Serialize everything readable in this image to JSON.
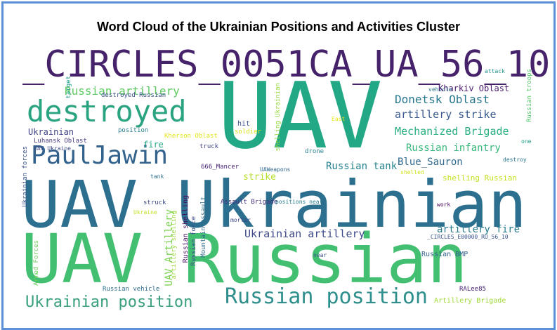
{
  "title": "Word Cloud of the Ukrainian Positions and Activities Cluster",
  "colors": {
    "border": "#5b8fd6"
  },
  "words": [
    {
      "text": "_CIRCLES_0051CA_UA_56_10",
      "color": "#45226a"
    },
    {
      "text": "UAV",
      "color": "#22a884"
    },
    {
      "text": "UAV Ukrainian",
      "color": "#2c6f8e"
    },
    {
      "text": "UAV Russian",
      "color": "#43bf71"
    },
    {
      "text": "destroyed",
      "color": "#2aa380"
    },
    {
      "text": "PaulJawin",
      "color": "#33638d"
    },
    {
      "text": "Russian position",
      "color": "#2f8f8c"
    },
    {
      "text": "Ukrainian position",
      "color": "#3ba07c"
    },
    {
      "text": "Russian artillery",
      "color": "#5ec962"
    },
    {
      "text": "Donetsk Oblast",
      "color": "#2a788e"
    },
    {
      "text": "artillery strike",
      "color": "#38598c"
    },
    {
      "text": "Mechanized Brigade",
      "color": "#29af7f"
    },
    {
      "text": "Russian infantry",
      "color": "#35b779"
    },
    {
      "text": "Blue_Sauron",
      "color": "#31688e"
    },
    {
      "text": "Russian tank",
      "color": "#25848e"
    },
    {
      "text": "Ukrainian artillery",
      "color": "#3e4989"
    },
    {
      "text": "artillery fire",
      "color": "#2a7b8e"
    },
    {
      "text": "Kharkiv Oblast",
      "color": "#481b6d"
    },
    {
      "text": "Ukrainian",
      "color": "#404387"
    },
    {
      "text": "UAV Artillery",
      "color": "#7ad151"
    },
    {
      "text": "strike",
      "color": "#b5de2b"
    },
    {
      "text": "shelling Russian",
      "color": "#c5e021"
    },
    {
      "text": "Artillery Brigade",
      "color": "#a0da39"
    },
    {
      "text": "fire",
      "color": "#22a884"
    },
    {
      "text": "hit",
      "color": "#3b528b"
    },
    {
      "text": "soldier",
      "color": "#d8e219"
    },
    {
      "text": "position",
      "color": "#287d8e"
    },
    {
      "text": "truck",
      "color": "#414487"
    },
    {
      "text": "drone",
      "color": "#26828e"
    },
    {
      "text": "attack",
      "color": "#21918c"
    },
    {
      "text": "vehicle",
      "color": "#2c728e"
    },
    {
      "text": "East",
      "color": "#e5e419"
    },
    {
      "text": "one",
      "color": "#1f9e89"
    },
    {
      "text": "destroy",
      "color": "#2a768e"
    },
    {
      "text": "Kherson Oblast",
      "color": "#e2e418"
    },
    {
      "text": "Luhansk Oblast",
      "color": "#443983"
    },
    {
      "text": "UAV Ukraine",
      "color": "#3e4c8a"
    },
    {
      "text": "666_Mancer",
      "color": "#482475"
    },
    {
      "text": "UAWeapons",
      "color": "#31688e"
    },
    {
      "text": "tank",
      "color": "#2d708e"
    },
    {
      "text": "struck",
      "color": "#404688"
    },
    {
      "text": "Ukraine",
      "color": "#c2df23"
    },
    {
      "text": "Assault Brigade",
      "color": "#46307e"
    },
    {
      "text": "positions near",
      "color": "#287c8e"
    },
    {
      "text": "shelled",
      "color": "#d2e21b"
    },
    {
      "text": "work",
      "color": "#440154"
    },
    {
      "text": "mortar",
      "color": "#3f4889"
    },
    {
      "text": "_CIRCLES_E00000_RU_56_10",
      "color": "#3a548c"
    },
    {
      "text": "Russian BMP",
      "color": "#33628d"
    },
    {
      "text": "near",
      "color": "#3c508b"
    },
    {
      "text": "Russian vehicle",
      "color": "#2e6e8e"
    },
    {
      "text": "RALee85",
      "color": "#482071"
    },
    {
      "text": "target",
      "color": "#1e9b8a"
    },
    {
      "text": "destroyed Russian",
      "color": "#3b528b"
    },
    {
      "text": "shelling Ukrainian",
      "color": "#95d840"
    },
    {
      "text": "Russian troops",
      "color": "#52c569"
    },
    {
      "text": "Ukrainian forces",
      "color": "#39568c"
    },
    {
      "text": "Armed Forces",
      "color": "#6ccd5a"
    },
    {
      "text": "artillery shelling",
      "color": "#9dd93b"
    },
    {
      "text": "Russian shelling",
      "color": "#471063"
    },
    {
      "text": "Russian force",
      "color": "#3d4e8a"
    },
    {
      "text": "Mountain assault",
      "color": "#2f6c8e"
    }
  ]
}
